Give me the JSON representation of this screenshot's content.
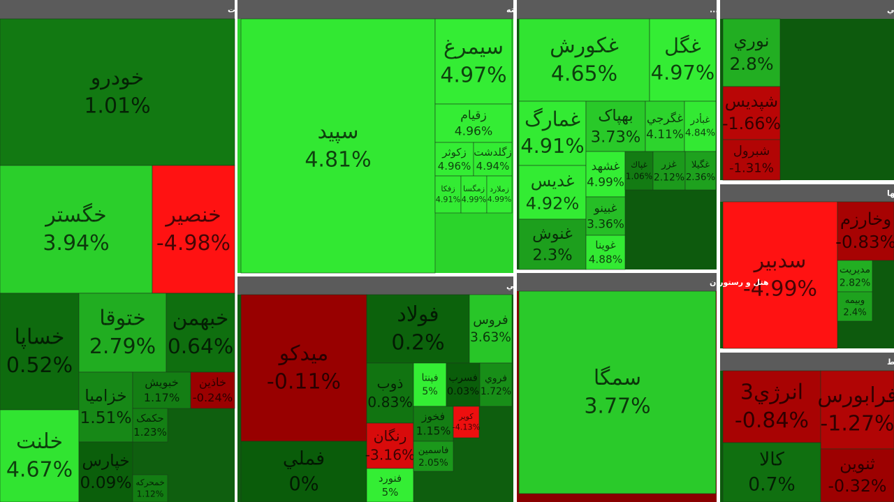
{
  "chart_data": [
    {
      "type": "treemap",
      "title": "خودرو و ساخت قطعات",
      "categories": [
        "خودرو",
        "خگستر",
        "خنصير",
        "خساپا",
        "خلنت",
        "ختوقا",
        "خبهمن",
        "خزاميا",
        "خبويش",
        "خاذين",
        "خپارس",
        "حکمک",
        "خمحركه"
      ],
      "values": [
        1.01,
        3.94,
        -4.98,
        0.52,
        4.67,
        2.79,
        0.64,
        1.51,
        1.17,
        -0.24,
        0.09,
        1.23,
        1.12
      ],
      "value_labels": [
        "1.01%",
        "3.94%",
        "-4.98%",
        "0.52%",
        "4.67%",
        "2.79%",
        "0.64%",
        "1.51%",
        "1.17%",
        "-0.24%",
        "0.09%",
        "1.23%",
        "1.12%"
      ]
    },
    {
      "type": "treemap",
      "title": "زراعت و خدمات وابسته",
      "categories": [
        "سپيد",
        "سيمرغ",
        "زقيام",
        "زكوثر",
        "زگلدشت",
        "زفكا",
        "زمگسا",
        "زملارد"
      ],
      "values": [
        4.81,
        4.97,
        4.96,
        4.96,
        4.94,
        4.91,
        4.99,
        4.99
      ],
      "value_labels": [
        "4.81%",
        "4.97%",
        "4.96%",
        "4.96%",
        "4.94%",
        "4.91%",
        "4.99%",
        "4.99%"
      ]
    },
    {
      "type": "treemap",
      "title": "محصولات غذايي و آشاميدني به جز ق...",
      "categories": [
        "غكورش",
        "غگل",
        "غمارگ",
        "غديس",
        "غنوش",
        "بهپاک",
        "غگرجي",
        "غبأدر",
        "غشهد",
        "غبينو",
        "غوينا",
        "غپاك",
        "غزر",
        "غگيلا"
      ],
      "values": [
        4.65,
        4.97,
        4.91,
        4.92,
        2.3,
        3.73,
        4.11,
        4.84,
        4.99,
        3.36,
        4.88,
        1.06,
        2.12,
        2.36
      ],
      "value_labels": [
        "4.65%",
        "4.97%",
        "4.91%",
        "4.92%",
        "2.3%",
        "3.73%",
        "4.11%",
        "4.84%",
        "4.99%",
        "3.36%",
        "4.88%",
        "1.06%",
        "2.12%",
        "2.36%"
      ]
    },
    {
      "type": "treemap",
      "title": "محصولات شيميايي",
      "categories": [
        "نوري",
        "شپديس",
        "شبرول"
      ],
      "values": [
        2.8,
        -1.66,
        -1.31
      ],
      "value_labels": [
        "2.8%",
        "-1.66%",
        "-1.31%"
      ]
    },
    {
      "type": "treemap",
      "title": "سرمايه گذاريها",
      "categories": [
        "سدبير",
        "وخارزم",
        "مديريت",
        "وبيمه"
      ],
      "values": [
        -4.99,
        -0.83,
        2.82,
        2.4
      ],
      "value_labels": [
        "-4.99%",
        "-0.83%",
        "2.82%",
        "2.4%"
      ]
    },
    {
      "type": "treemap",
      "title": "فعاليتهاي كمكي به نهادهاي مالي واسط",
      "categories": [
        "انرژي3",
        "فرابورس",
        "كالا",
        "ثنوين"
      ],
      "values": [
        -0.84,
        -1.27,
        0.7,
        -0.32
      ],
      "value_labels": [
        "-0.84%",
        "-1.27%",
        "0.7%",
        "-0.32%"
      ]
    },
    {
      "type": "treemap",
      "title": "فلزات اساسي",
      "categories": [
        "ميدكو",
        "فملي",
        "فولاد",
        "فروس",
        "ذوب",
        "فپنتا",
        "فسرب",
        "فروي",
        "رنگان",
        "فنورد",
        "فخوز",
        "كوير",
        "فاسمين"
      ],
      "values": [
        -0.11,
        0,
        0.2,
        3.63,
        0.83,
        5,
        0.03,
        1.72,
        -3.16,
        5,
        1.15,
        -4.13,
        2.05
      ],
      "value_labels": [
        "-0.11%",
        "0%",
        "0.2%",
        "3.63%",
        "0.83%",
        "5%",
        "0.03%",
        "1.72%",
        "-3.16%",
        "5%",
        "1.15%",
        "-4.13%",
        "2.05%"
      ]
    },
    {
      "type": "treemap",
      "title": "هتل و رستوران",
      "categories": [
        "سمگا"
      ],
      "values": [
        3.77
      ],
      "value_labels": [
        "3.77%"
      ]
    }
  ]
}
